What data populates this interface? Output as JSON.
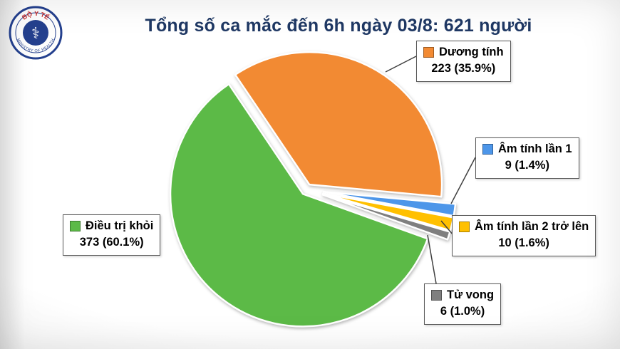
{
  "title": "Tổng số ca mắc đến 6h ngày 03/8: 621 người",
  "logo": {
    "org": "BỘ Y TẾ",
    "org_subtitle": "MINISTRY OF HEALTH",
    "symbol": "⚕"
  },
  "chart_data": {
    "type": "pie",
    "title": "Tổng số ca mắc đến 6h ngày 03/8: 621 người",
    "total": 621,
    "unit": "người",
    "start_angle_deg": -34,
    "direction": "clockwise",
    "legend_position": "callouts",
    "slices": [
      {
        "id": "duong-tinh",
        "label": "Dương tính",
        "value": 223,
        "pct": 35.9,
        "value_label": "223 (35.9%)",
        "color": "#F28A33"
      },
      {
        "id": "am-tinh-lan-1",
        "label": "Âm tính lần 1",
        "value": 9,
        "pct": 1.4,
        "value_label": "9 (1.4%)",
        "color": "#4D96E9"
      },
      {
        "id": "am-tinh-lan-2",
        "label": "Âm tính lần 2 trở lên",
        "value": 10,
        "pct": 1.6,
        "value_label": "10 (1.6%)",
        "color": "#FFC000"
      },
      {
        "id": "tu-vong",
        "label": "Tử vong",
        "value": 6,
        "pct": 1.0,
        "value_label": "6 (1.0%)",
        "color": "#7F7F7F"
      },
      {
        "id": "dieu-tri-khoi",
        "label": "Điều trị khỏi",
        "value": 373,
        "pct": 60.1,
        "value_label": "373 (60.1%)",
        "color": "#5CBA47"
      }
    ]
  },
  "style": {
    "title_color": "#1F3864",
    "leader_line_color": "#3F3F3F",
    "logo_navy": "#24408E",
    "logo_red": "#C62828",
    "background_edge": "#DEDEDE"
  }
}
